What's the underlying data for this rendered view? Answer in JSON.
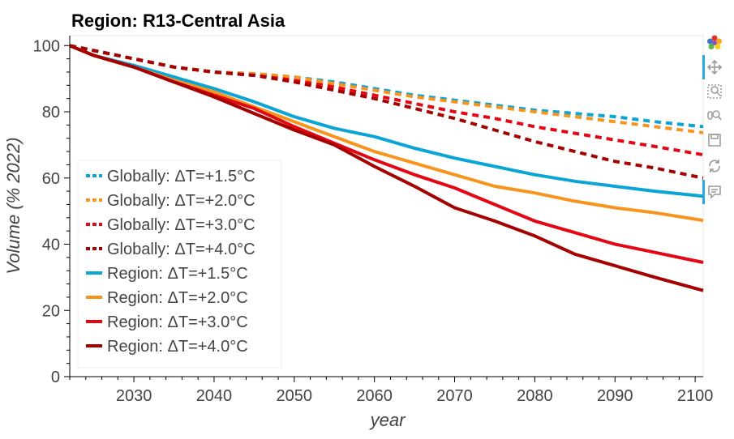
{
  "chart_data": {
    "type": "line",
    "title": "Region: R13-Central Asia",
    "xlabel": "year",
    "ylabel": "Volume (% 2022)",
    "xlim": [
      2022,
      2101
    ],
    "ylim": [
      0,
      103
    ],
    "xticks": [
      2030,
      2040,
      2050,
      2060,
      2070,
      2080,
      2090,
      2100
    ],
    "yticks": [
      0,
      20,
      40,
      60,
      80,
      100
    ],
    "grid": false,
    "legend": "bottom-left",
    "x": [
      2022,
      2025,
      2030,
      2035,
      2040,
      2045,
      2050,
      2055,
      2060,
      2065,
      2070,
      2075,
      2080,
      2085,
      2090,
      2095,
      2101
    ],
    "series": [
      {
        "name": "Globally: ΔT=+1.5°C",
        "style": "dashed",
        "color": "#0aa5d5",
        "values": [
          100,
          98.5,
          96,
          93.5,
          92,
          91.5,
          90.5,
          89,
          87,
          85,
          83.5,
          82,
          80.5,
          79.5,
          78.5,
          77,
          75.5
        ]
      },
      {
        "name": "Globally: ΔT=+2.0°C",
        "style": "dashed",
        "color": "#f7941d",
        "values": [
          100,
          98.5,
          96,
          93.5,
          92,
          91.5,
          90.5,
          88.5,
          86.5,
          84.5,
          83,
          81.5,
          80,
          78.5,
          77,
          75.5,
          73.7
        ]
      },
      {
        "name": "Globally: ΔT=+3.0°C",
        "style": "dashed",
        "color": "#e30613",
        "values": [
          100,
          98.5,
          96,
          93.5,
          92,
          91,
          89.5,
          87.5,
          85,
          82.5,
          80,
          78,
          75.5,
          73.5,
          71.5,
          69.5,
          67
        ]
      },
      {
        "name": "Globally: ΔT=+4.0°C",
        "style": "dashed",
        "color": "#a50000",
        "values": [
          100,
          98.5,
          96,
          93.5,
          92,
          91,
          89,
          86.5,
          84,
          81,
          78,
          74.5,
          71,
          68,
          65,
          63,
          60
        ]
      },
      {
        "name": "Region: ΔT=+1.5°C",
        "style": "solid",
        "color": "#0aa5d5",
        "values": [
          100,
          97,
          94,
          90.5,
          87,
          83,
          78.5,
          75,
          72.5,
          69,
          66,
          63.5,
          61,
          59,
          57.5,
          56,
          54.5
        ]
      },
      {
        "name": "Region: ΔT=+2.0°C",
        "style": "solid",
        "color": "#f7941d",
        "values": [
          100,
          97,
          93.5,
          89.5,
          86,
          81.5,
          77,
          72.5,
          68,
          64.5,
          61,
          57.5,
          55.5,
          53,
          51,
          49.5,
          47.2
        ]
      },
      {
        "name": "Region: ΔT=+3.0°C",
        "style": "solid",
        "color": "#e30613",
        "values": [
          100,
          97,
          93.5,
          89,
          85,
          81,
          75.5,
          70.5,
          65.5,
          61,
          57,
          52,
          47,
          43.5,
          40,
          37.5,
          34.5
        ]
      },
      {
        "name": "Region: ΔT=+4.0°C",
        "style": "solid",
        "color": "#a50000",
        "values": [
          100,
          97,
          93.5,
          89,
          84.5,
          79.5,
          74.5,
          70,
          63.5,
          57.5,
          51,
          47,
          42.5,
          37,
          33.5,
          30,
          26
        ]
      }
    ]
  },
  "toolbar": {
    "tools": [
      "bokeh-logo-icon",
      "pan-icon",
      "box-zoom-icon",
      "wheel-zoom-icon",
      "save-icon",
      "reset-icon",
      "hover-icon"
    ]
  }
}
